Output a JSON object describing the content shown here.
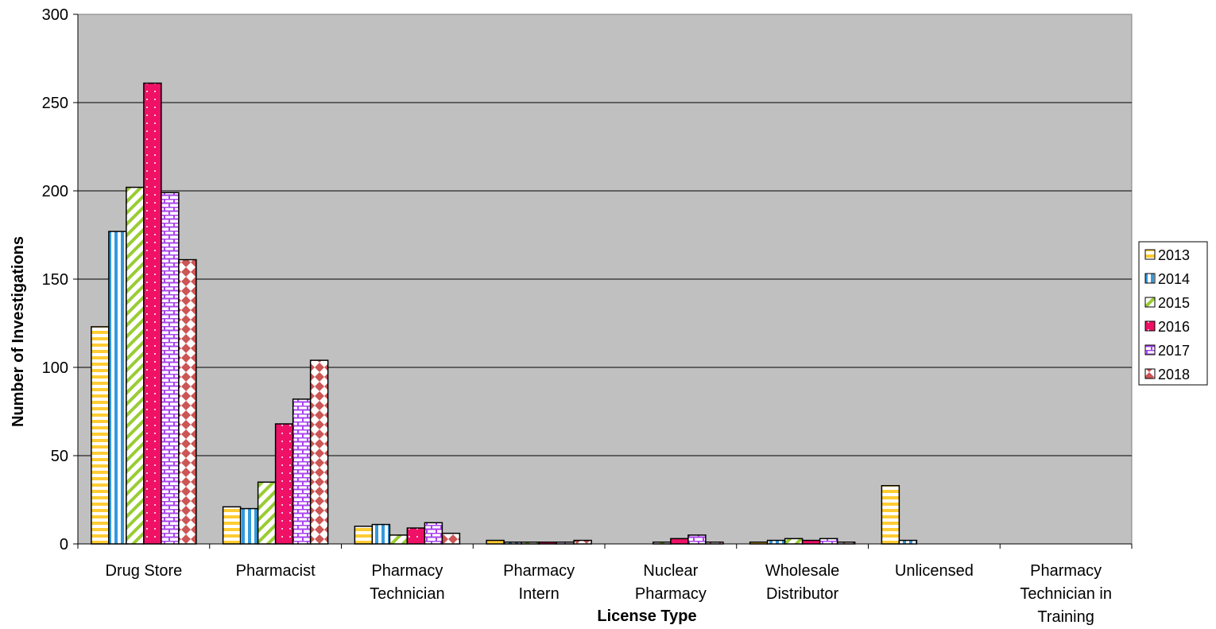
{
  "chart_data": {
    "type": "bar",
    "title": "",
    "xlabel": "License Type",
    "ylabel": "Number of Investigations",
    "ylim": [
      0,
      300
    ],
    "yticks": [
      "0",
      "50",
      "100",
      "150",
      "200",
      "250",
      "300"
    ],
    "grid": true,
    "legend_position": "right",
    "categories": [
      [
        "Drug Store"
      ],
      [
        "Pharmacist"
      ],
      [
        "Pharmacy",
        "Technician"
      ],
      [
        "Pharmacy",
        "Intern"
      ],
      [
        "Nuclear",
        "Pharmacy"
      ],
      [
        "Wholesale",
        "Distributor"
      ],
      [
        "Unlicensed"
      ],
      [
        "Pharmacy",
        "Technician in",
        "Training"
      ]
    ],
    "series": [
      {
        "name": "2013",
        "color": "#FFCC33",
        "pattern": "horizontal-stripes",
        "values": [
          123,
          21,
          10,
          2,
          0,
          1,
          33,
          0
        ]
      },
      {
        "name": "2014",
        "color": "#3399DD",
        "pattern": "vertical-stripes",
        "values": [
          177,
          20,
          11,
          1,
          0,
          2,
          2,
          0
        ]
      },
      {
        "name": "2015",
        "color": "#99CC33",
        "pattern": "diagonal-stripes",
        "values": [
          202,
          35,
          5,
          1,
          1,
          3,
          0,
          0
        ]
      },
      {
        "name": "2016",
        "color": "#EE1166",
        "pattern": "dots",
        "values": [
          261,
          68,
          9,
          1,
          3,
          2,
          0,
          0
        ]
      },
      {
        "name": "2017",
        "color": "#AA44EE",
        "pattern": "bricks",
        "values": [
          199,
          82,
          12,
          1,
          5,
          3,
          0,
          0
        ]
      },
      {
        "name": "2018",
        "color": "#CC5555",
        "pattern": "diamonds",
        "values": [
          161,
          104,
          6,
          2,
          1,
          1,
          0,
          0
        ]
      }
    ]
  }
}
